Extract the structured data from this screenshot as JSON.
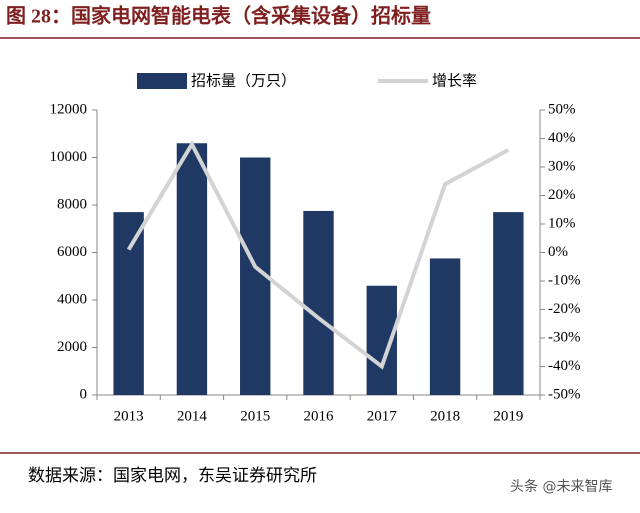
{
  "chart_data": {
    "type": "bar_line",
    "title": "图 28：国家电网智能电表（含采集设备）招标量",
    "categories": [
      "2013",
      "2014",
      "2015",
      "2016",
      "2017",
      "2018",
      "2019"
    ],
    "series": [
      {
        "name": "招标量（万只）",
        "color": "#1f3864",
        "type": "bar",
        "values": [
          7700,
          10600,
          10000,
          7750,
          4600,
          5750,
          7700
        ]
      },
      {
        "name": "增长率",
        "color": "#d3d3d3",
        "type": "line",
        "axis": "y2",
        "values": [
          1,
          38,
          -5,
          -23,
          -40,
          24,
          36
        ]
      }
    ],
    "ylim": [
      0,
      12000
    ],
    "yticks": [
      0,
      2000,
      4000,
      6000,
      8000,
      10000,
      12000
    ],
    "y2lim": [
      -50,
      50
    ],
    "y2ticks": [
      {
        "value": -50,
        "label": "-50%"
      },
      {
        "value": -40,
        "label": "-40%"
      },
      {
        "value": -30,
        "label": "-30%"
      },
      {
        "value": -20,
        "label": "-20%"
      },
      {
        "value": -10,
        "label": "-10%"
      },
      {
        "value": 0,
        "label": "0%"
      },
      {
        "value": 10,
        "label": "10%"
      },
      {
        "value": 20,
        "label": "20%"
      },
      {
        "value": 30,
        "label": "30%"
      },
      {
        "value": 40,
        "label": "40%"
      },
      {
        "value": 50,
        "label": "50%"
      }
    ],
    "legend": "top",
    "source": "数据来源：国家电网，东吴证券研究所",
    "watermark": "头条 @未来智库"
  }
}
